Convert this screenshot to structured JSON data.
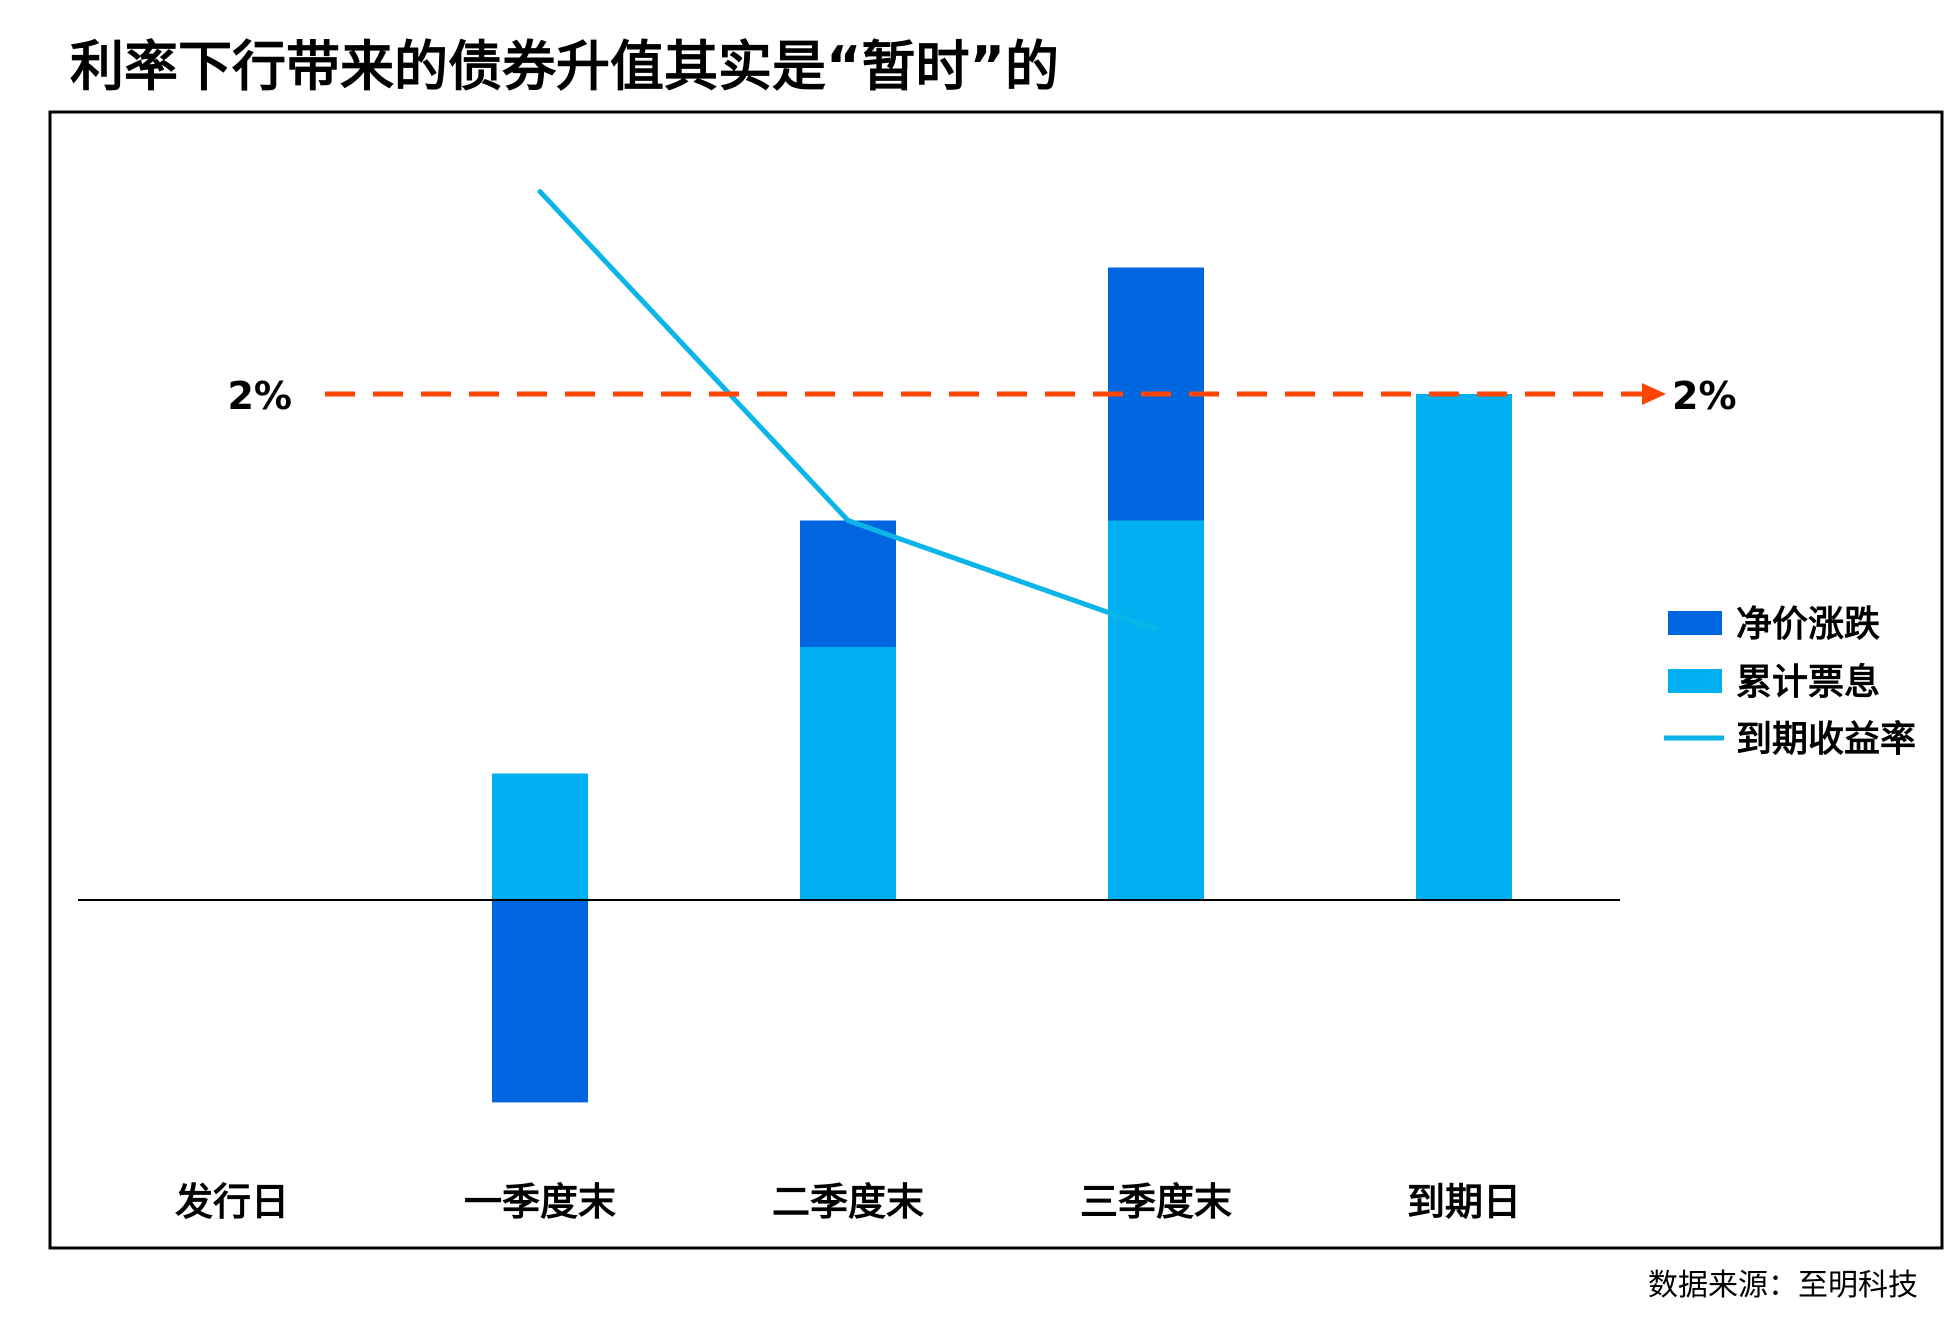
{
  "chart_data": {
    "type": "bar",
    "title": "利率下行带来的债券升值其实是“暂时”的",
    "source_note": "数据来源：至明科技",
    "categories": [
      "发行日",
      "一季度末",
      "二季度末",
      "三季度末",
      "到期日"
    ],
    "series": [
      {
        "name": "累计票息",
        "kind": "bar-stack",
        "color": "#00B0F0",
        "values": [
          0,
          0.5,
          1.0,
          1.5,
          2.0
        ]
      },
      {
        "name": "净价涨跌",
        "kind": "bar-stack",
        "color": "#0066E0",
        "values": [
          0,
          -0.8,
          0.5,
          1.0,
          0
        ]
      },
      {
        "name": "到期收益率",
        "kind": "line",
        "color": "#0BB5E8",
        "values": [
          null,
          2.8,
          1.5,
          1.07,
          null
        ]
      }
    ],
    "reference_line": {
      "value": 2,
      "label_left": "2%",
      "label_right": "2%",
      "color": "#FF4500",
      "style": "dashed-arrow"
    },
    "ylim": [
      -1.1,
      2.9
    ],
    "xlabel": "",
    "ylabel": "",
    "legend": {
      "position": "right",
      "items": [
        {
          "label": "净价涨跌",
          "marker": "box",
          "color": "#0066E0"
        },
        {
          "label": "累计票息",
          "marker": "box",
          "color": "#00B0F0"
        },
        {
          "label": "到期收益率",
          "marker": "line",
          "color": "#0BB5E8"
        }
      ]
    }
  }
}
